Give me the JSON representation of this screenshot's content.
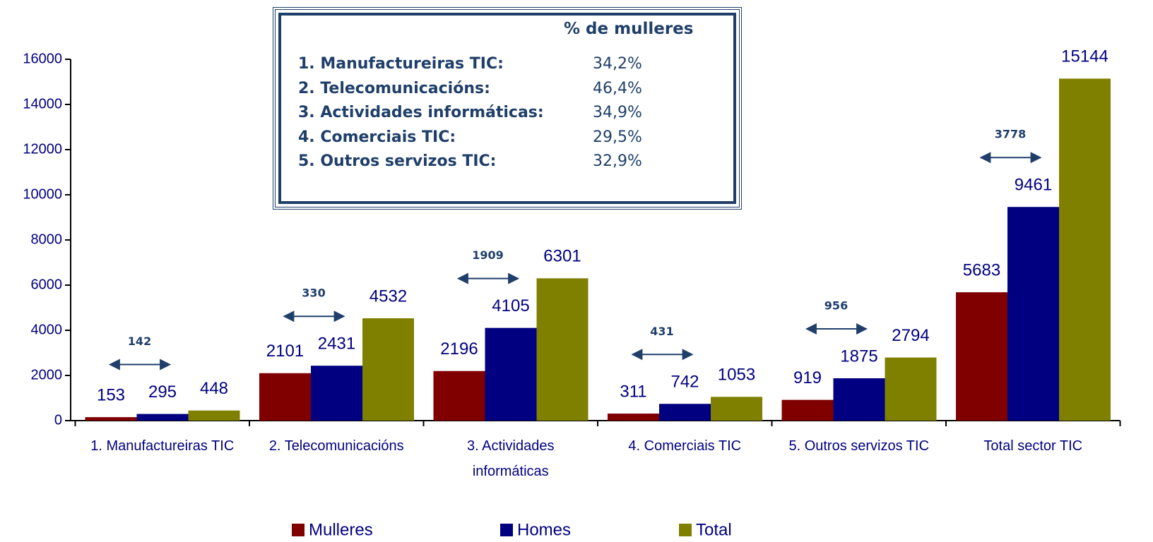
{
  "chart_data": {
    "type": "bar",
    "categories": [
      "1. Manufactureiras TIC",
      "2. Telecomunicacións",
      "3. Actividades informáticas",
      "4. Comerciais TIC",
      "5. Outros servizos TIC",
      "Total sector TIC"
    ],
    "series": [
      {
        "name": "Mulleres",
        "color": "#800000",
        "values": [
          153,
          2101,
          2196,
          311,
          919,
          5683
        ]
      },
      {
        "name": "Homes",
        "color": "#000080",
        "values": [
          295,
          2431,
          4105,
          742,
          1875,
          9461
        ]
      },
      {
        "name": "Total",
        "color": "#808000",
        "values": [
          448,
          4532,
          6301,
          1053,
          2794,
          15144
        ]
      }
    ],
    "difference_labels": [
      142,
      330,
      1909,
      431,
      956,
      3778
    ],
    "ylim": [
      0,
      16000
    ],
    "yticks": [
      0,
      2000,
      4000,
      6000,
      8000,
      10000,
      12000,
      14000,
      16000
    ],
    "legend": "bottom",
    "inset": {
      "title": "% de mulleres",
      "rows": [
        [
          "1. Manufactureiras TIC:",
          "34,2%"
        ],
        [
          "2. Telecomunicacións:",
          "46,4%"
        ],
        [
          "3. Actividades informáticas:",
          "34,9%"
        ],
        [
          "4. Comerciais TIC:",
          "29,5%"
        ],
        [
          "5. Outros servizos TIC:",
          "32,9%"
        ]
      ]
    }
  }
}
